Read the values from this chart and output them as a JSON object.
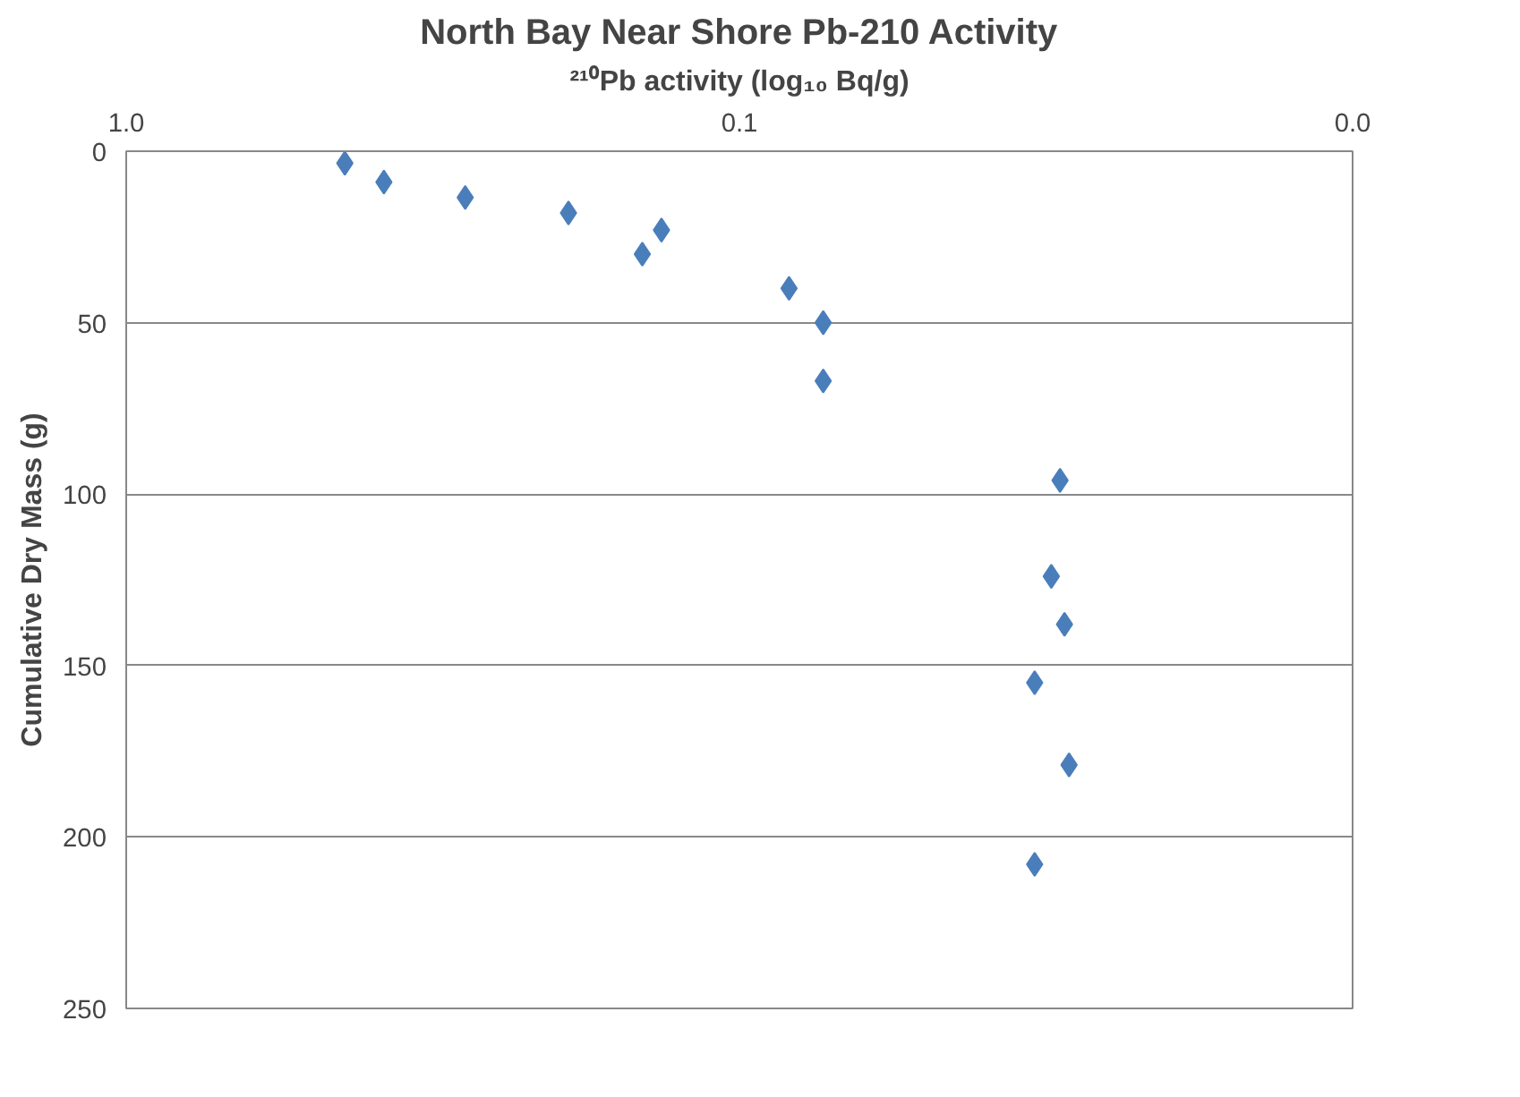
{
  "chart_data": {
    "type": "scatter",
    "title": "North Bay Near Shore Pb-210 Activity",
    "xlabel": "²¹⁰Pb activity (log₁₀ Bq/g)",
    "ylabel": "Cumulative Dry Mass (g)",
    "log": "x",
    "grid": "y",
    "marker": "diamond",
    "xlim": [
      1,
      0.01
    ],
    "xticks": [
      {
        "value": 1,
        "label": "1.0"
      },
      0.1,
      {
        "value": 0.01,
        "label": "0.0"
      }
    ],
    "ylim": [
      250,
      0
    ],
    "yticks": [
      0,
      50,
      100,
      150,
      200,
      250
    ],
    "series": [
      {
        "color": "#4a7ebb",
        "x": [
          0.44,
          0.38,
          0.28,
          0.19,
          0.134,
          0.144,
          0.083,
          0.073,
          0.073,
          0.03,
          0.031,
          0.0295,
          0.033,
          0.029,
          0.033
        ],
        "values": [
          3.5,
          9,
          13.5,
          18,
          23,
          30,
          40,
          50,
          67,
          96,
          124,
          138,
          155,
          179,
          208
        ]
      }
    ]
  }
}
